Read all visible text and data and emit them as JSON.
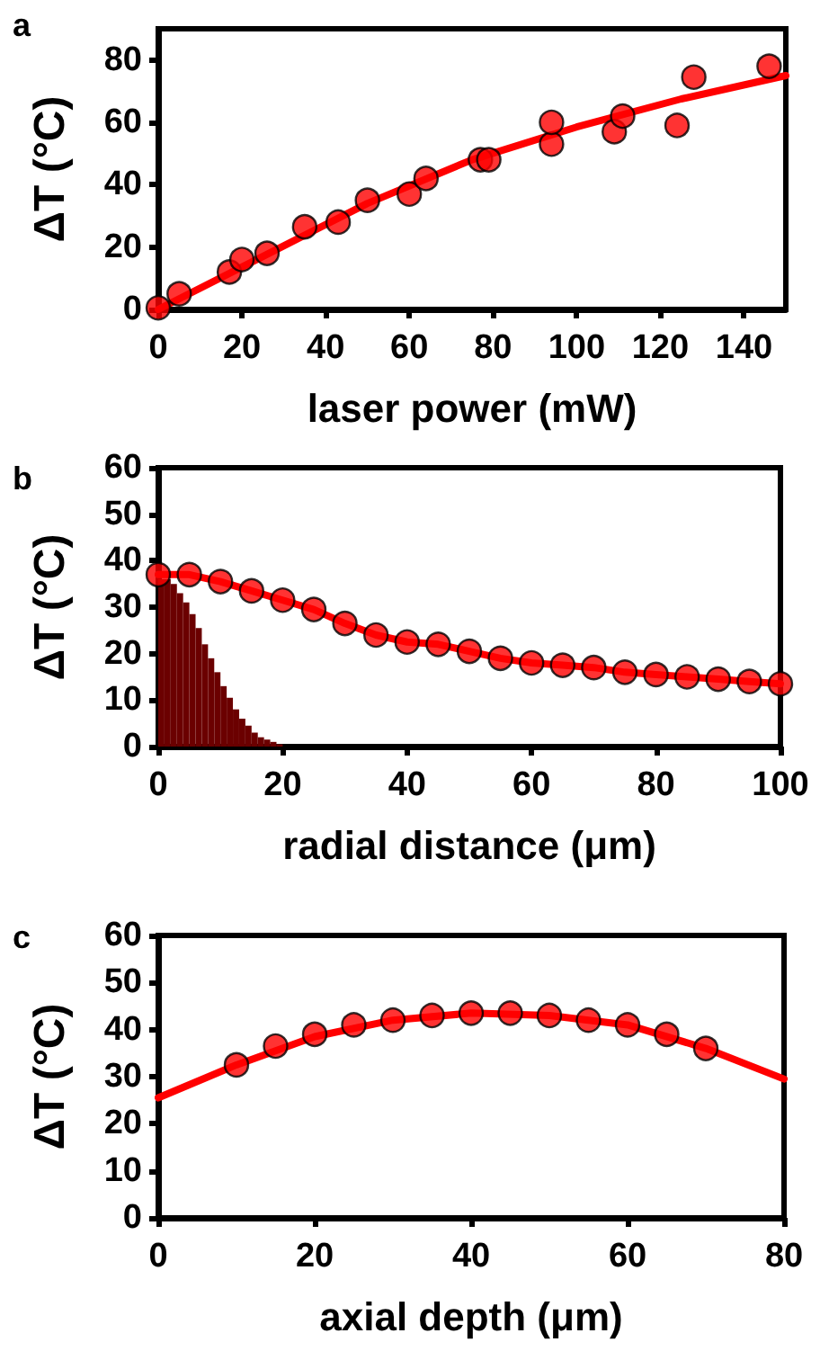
{
  "chart_data": [
    {
      "type": "scatter",
      "title": "a",
      "xlabel": "laser power (mW)",
      "ylabel": "ΔT (°C)",
      "xlim": [
        0,
        150
      ],
      "xticks": [
        0,
        20,
        40,
        60,
        80,
        100,
        120,
        140
      ],
      "ylim": [
        0,
        90
      ],
      "yticks": [
        0,
        20,
        40,
        60,
        80
      ],
      "grid": false,
      "marker": "circle",
      "series": [
        {
          "type": "line",
          "marker": "none",
          "color": "#ff0000",
          "x": [
            0,
            25,
            50,
            75,
            100,
            125,
            150
          ],
          "values": [
            0,
            17,
            34,
            48,
            58.5,
            67.5,
            75
          ]
        },
        {
          "color": "#ff0000",
          "x": [
            0,
            5,
            17,
            20,
            26,
            35,
            43,
            50,
            60,
            64,
            77,
            79,
            94,
            94,
            109,
            111,
            124,
            128,
            146
          ],
          "values": [
            0.5,
            5,
            12,
            16,
            18,
            26.5,
            28,
            35,
            37,
            42,
            48,
            48,
            53,
            60,
            57,
            62,
            59,
            74.5,
            78
          ]
        }
      ]
    },
    {
      "type": "scatter",
      "title": "b",
      "xlabel": "radial distance (μm)",
      "ylabel": "ΔT (°C)",
      "xlim": [
        0,
        100
      ],
      "xticks": [
        0,
        20,
        40,
        60,
        80,
        100
      ],
      "ylim": [
        0,
        60
      ],
      "yticks": [
        0,
        10,
        20,
        30,
        40,
        50,
        60
      ],
      "grid": false,
      "marker": "circle",
      "series": [
        {
          "type": "bar",
          "color": "#6b0000",
          "x": [
            0.5,
            1.5,
            2.5,
            3.5,
            4.5,
            5.5,
            6.5,
            7.5,
            8.5,
            9.5,
            10.5,
            11.5,
            12.5,
            13.5,
            14.5,
            15.5,
            16.5,
            17.5,
            18.5,
            19.5
          ],
          "values": [
            36,
            36,
            35,
            33,
            31,
            28.5,
            25.5,
            22,
            19,
            16,
            13,
            10.5,
            8,
            6,
            4.5,
            3,
            2,
            1.5,
            1,
            0.5
          ]
        },
        {
          "type": "line",
          "marker": "none",
          "color": "#ff0000",
          "x": [
            0,
            5,
            10,
            15,
            20,
            25,
            30,
            35,
            40,
            45,
            50,
            55,
            60,
            65,
            70,
            75,
            80,
            85,
            90,
            95,
            100
          ],
          "values": [
            37,
            37,
            35.5,
            33.5,
            31.5,
            29.5,
            26.5,
            24,
            22.5,
            22,
            20.5,
            19,
            18,
            17.5,
            17,
            16,
            15.5,
            15,
            14.5,
            14,
            13.5
          ]
        },
        {
          "color": "#ff0000",
          "x": [
            0,
            5,
            10,
            15,
            20,
            25,
            30,
            35,
            40,
            45,
            50,
            55,
            60,
            65,
            70,
            75,
            80,
            85,
            90,
            95,
            100
          ],
          "values": [
            37,
            37,
            35.5,
            33.5,
            31.5,
            29.5,
            26.5,
            24,
            22.5,
            22,
            20.5,
            19,
            18,
            17.5,
            17,
            16,
            15.5,
            15,
            14.5,
            14,
            13.5
          ]
        }
      ]
    },
    {
      "type": "scatter",
      "title": "c",
      "xlabel": "axial depth (μm)",
      "ylabel": "ΔT (°C)",
      "xlim": [
        0,
        80
      ],
      "xticks": [
        0,
        20,
        40,
        60,
        80
      ],
      "ylim": [
        0,
        60
      ],
      "yticks": [
        0,
        10,
        20,
        30,
        40,
        50,
        60
      ],
      "grid": false,
      "marker": "circle",
      "series": [
        {
          "type": "line",
          "marker": "none",
          "color": "#ff0000",
          "x": [
            0,
            10,
            20,
            30,
            40,
            50,
            60,
            70,
            80
          ],
          "values": [
            25.5,
            32.5,
            38.5,
            42,
            43.5,
            43,
            41,
            36,
            29.5
          ]
        },
        {
          "color": "#ff0000",
          "x": [
            10,
            15,
            20,
            25,
            30,
            35,
            40,
            45,
            50,
            55,
            60,
            65,
            70
          ],
          "values": [
            32.5,
            36.5,
            39,
            41,
            42,
            43,
            43.5,
            43.5,
            43,
            42,
            41,
            39,
            36
          ]
        }
      ]
    }
  ]
}
